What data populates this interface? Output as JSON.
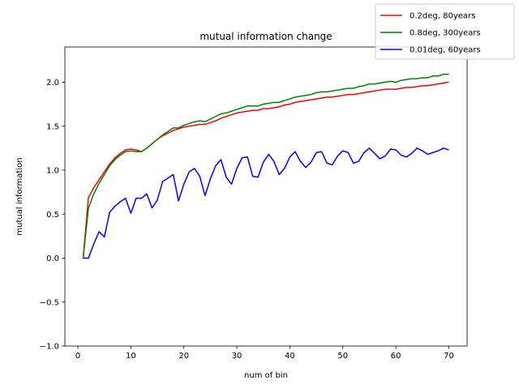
{
  "chart_data": {
    "type": "line",
    "title": "mutual information change",
    "xlabel": "num of bin",
    "ylabel": "mutual information",
    "xlim": [
      -2.45,
      73.45
    ],
    "ylim": [
      -1.0,
      2.4
    ],
    "xticks": [
      0,
      10,
      20,
      30,
      40,
      50,
      60,
      70
    ],
    "yticks": [
      -1.0,
      -0.5,
      0.0,
      0.5,
      1.0,
      1.5,
      2.0
    ],
    "ytick_labels": [
      "−1.0",
      "−0.5",
      "0.0",
      "0.5",
      "1.0",
      "1.5",
      "2.0"
    ],
    "grid": false,
    "legend_position": "top-right",
    "x": [
      1,
      2,
      3,
      4,
      5,
      6,
      7,
      8,
      9,
      10,
      11,
      12,
      13,
      14,
      15,
      16,
      17,
      18,
      19,
      20,
      21,
      22,
      23,
      24,
      25,
      26,
      27,
      28,
      29,
      30,
      31,
      32,
      33,
      34,
      35,
      36,
      37,
      38,
      39,
      40,
      41,
      42,
      43,
      44,
      45,
      46,
      47,
      48,
      49,
      50,
      51,
      52,
      53,
      54,
      55,
      56,
      57,
      58,
      59,
      60,
      61,
      62,
      63,
      64,
      65,
      66,
      67,
      68,
      69,
      70
    ],
    "series": [
      {
        "name": "0.2deg, 80years",
        "color": "#ff0000",
        "values": [
          0.0,
          0.69,
          0.8,
          0.89,
          0.98,
          1.07,
          1.14,
          1.19,
          1.23,
          1.24,
          1.23,
          1.21,
          1.25,
          1.3,
          1.35,
          1.39,
          1.42,
          1.45,
          1.47,
          1.49,
          1.5,
          1.51,
          1.52,
          1.52,
          1.54,
          1.56,
          1.59,
          1.61,
          1.63,
          1.65,
          1.66,
          1.67,
          1.68,
          1.68,
          1.7,
          1.7,
          1.71,
          1.72,
          1.74,
          1.75,
          1.77,
          1.78,
          1.79,
          1.8,
          1.81,
          1.82,
          1.83,
          1.83,
          1.84,
          1.85,
          1.86,
          1.86,
          1.87,
          1.88,
          1.89,
          1.9,
          1.91,
          1.92,
          1.92,
          1.92,
          1.93,
          1.94,
          1.94,
          1.95,
          1.96,
          1.96,
          1.97,
          1.98,
          1.99,
          2.0
        ]
      },
      {
        "name": "0.8deg, 300years",
        "color": "#008000",
        "values": [
          0.0,
          0.57,
          0.73,
          0.85,
          0.95,
          1.05,
          1.12,
          1.17,
          1.21,
          1.22,
          1.21,
          1.21,
          1.25,
          1.3,
          1.35,
          1.4,
          1.44,
          1.48,
          1.48,
          1.51,
          1.53,
          1.55,
          1.56,
          1.55,
          1.58,
          1.61,
          1.64,
          1.65,
          1.67,
          1.69,
          1.71,
          1.73,
          1.73,
          1.73,
          1.75,
          1.76,
          1.77,
          1.77,
          1.79,
          1.81,
          1.83,
          1.84,
          1.85,
          1.86,
          1.88,
          1.89,
          1.89,
          1.9,
          1.91,
          1.92,
          1.93,
          1.93,
          1.95,
          1.96,
          1.98,
          1.98,
          1.99,
          2.0,
          2.01,
          2.0,
          2.02,
          2.03,
          2.04,
          2.04,
          2.05,
          2.05,
          2.07,
          2.07,
          2.09,
          2.09
        ]
      },
      {
        "name": "0.01deg, 60years",
        "color": "#0000ff",
        "values": [
          0.0,
          0.0,
          0.16,
          0.3,
          0.24,
          0.52,
          0.59,
          0.64,
          0.68,
          0.51,
          0.68,
          0.68,
          0.73,
          0.57,
          0.66,
          0.87,
          0.91,
          0.95,
          0.65,
          0.84,
          0.98,
          1.02,
          0.93,
          0.71,
          0.9,
          1.05,
          1.12,
          0.92,
          0.84,
          1.02,
          1.14,
          1.15,
          0.93,
          0.92,
          1.09,
          1.18,
          1.1,
          0.95,
          1.02,
          1.15,
          1.21,
          1.1,
          1.03,
          1.09,
          1.2,
          1.21,
          1.08,
          1.06,
          1.16,
          1.22,
          1.2,
          1.08,
          1.1,
          1.2,
          1.25,
          1.19,
          1.13,
          1.16,
          1.24,
          1.23,
          1.17,
          1.15,
          1.19,
          1.25,
          1.22,
          1.18,
          1.2,
          1.22,
          1.25,
          1.23
        ]
      }
    ]
  }
}
